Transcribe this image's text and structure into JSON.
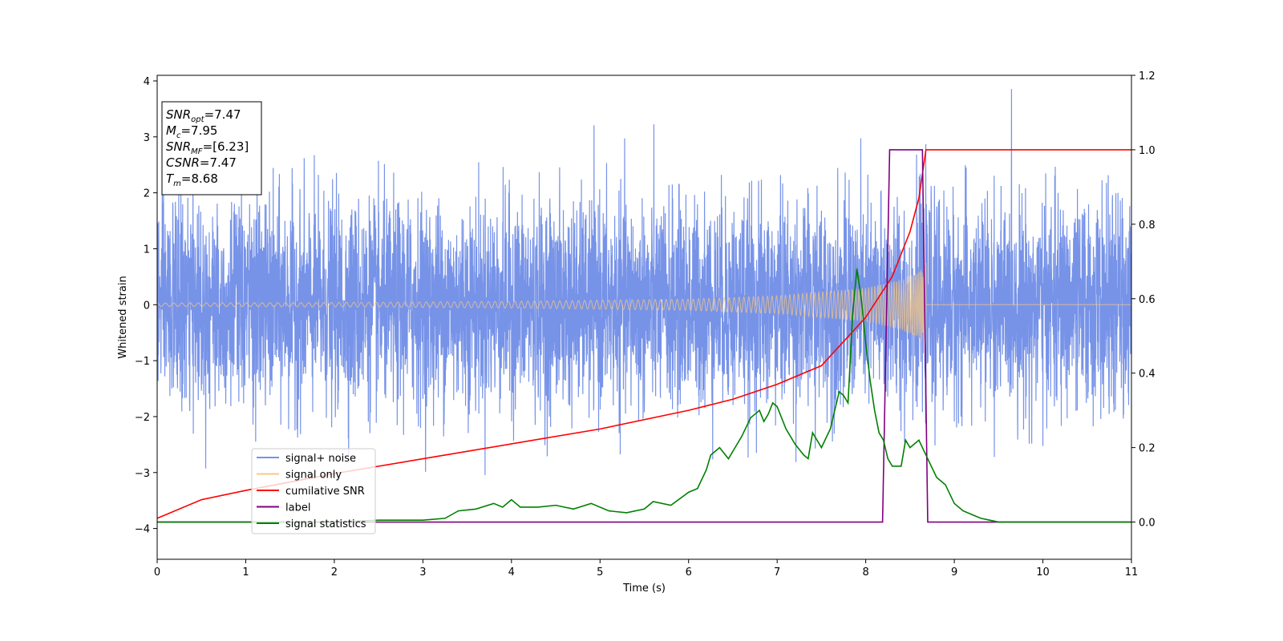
{
  "chart_data": {
    "type": "line",
    "title": "",
    "xlabel": "Time (s)",
    "ylabel": "Whitened strain",
    "xlim": [
      0,
      11
    ],
    "ylim_left": [
      -4.55,
      4.1
    ],
    "ylim_right": [
      -0.1,
      1.2
    ],
    "xticks": [
      0,
      1,
      2,
      3,
      4,
      5,
      6,
      7,
      8,
      9,
      10,
      11
    ],
    "yticks_left": [
      -4,
      -3,
      -2,
      -1,
      0,
      1,
      2,
      3,
      4
    ],
    "yticks_right": [
      0.0,
      0.2,
      0.4,
      0.6,
      0.8,
      1.0,
      1.2
    ],
    "xtick_labels": [
      "0",
      "1",
      "2",
      "3",
      "4",
      "5",
      "6",
      "7",
      "8",
      "9",
      "10",
      "11"
    ],
    "ytick_labels_left": [
      "−4",
      "−3",
      "−2",
      "−1",
      "0",
      "1",
      "2",
      "3",
      "4"
    ],
    "ytick_labels_right": [
      "0.0",
      "0.2",
      "0.4",
      "0.6",
      "0.8",
      "1.0",
      "1.2"
    ],
    "grid": false,
    "legend_position": "lower-left",
    "series": [
      {
        "name": "signal+ noise",
        "axis": "left",
        "color": "#7793e8",
        "kind": "noise",
        "noise_std": 0.9,
        "x_range": [
          0,
          11
        ]
      },
      {
        "name": "signal only",
        "axis": "left",
        "color": "#f7c784",
        "kind": "chirp",
        "merger_time": 8.68,
        "envelope_x": [
          0,
          2,
          4,
          6,
          7,
          8,
          8.4,
          8.6,
          8.68
        ],
        "envelope_y": [
          0.03,
          0.04,
          0.06,
          0.1,
          0.16,
          0.3,
          0.45,
          0.6,
          0.75
        ]
      },
      {
        "name": "cumilative SNR",
        "axis": "right",
        "color": "#ff0000",
        "x": [
          0,
          0.5,
          1,
          2,
          3,
          4,
          5,
          6,
          6.5,
          7,
          7.5,
          8,
          8.3,
          8.5,
          8.6,
          8.68,
          8.7,
          11
        ],
        "y": [
          0.01,
          0.06,
          0.085,
          0.13,
          0.17,
          0.21,
          0.25,
          0.3,
          0.33,
          0.37,
          0.42,
          0.55,
          0.66,
          0.78,
          0.87,
          1.0,
          1.0,
          1.0
        ]
      },
      {
        "name": "label",
        "axis": "right",
        "color": "#800080",
        "x": [
          0,
          8.19,
          8.27,
          8.64,
          8.7,
          11
        ],
        "y": [
          0.0,
          0.0,
          1.0,
          1.0,
          0.0,
          0.0
        ]
      },
      {
        "name": "signal statistics",
        "axis": "right",
        "color": "#008000",
        "x": [
          0,
          1,
          2,
          2.5,
          3,
          3.25,
          3.4,
          3.6,
          3.8,
          3.9,
          4.0,
          4.1,
          4.3,
          4.5,
          4.7,
          4.9,
          5.1,
          5.3,
          5.5,
          5.6,
          5.8,
          6.0,
          6.1,
          6.2,
          6.25,
          6.35,
          6.45,
          6.5,
          6.6,
          6.7,
          6.8,
          6.85,
          6.9,
          6.95,
          7.0,
          7.1,
          7.2,
          7.3,
          7.35,
          7.4,
          7.5,
          7.6,
          7.7,
          7.75,
          7.8,
          7.85,
          7.9,
          7.95,
          8.0,
          8.05,
          8.1,
          8.15,
          8.2,
          8.25,
          8.3,
          8.4,
          8.45,
          8.5,
          8.55,
          8.6,
          8.7,
          8.8,
          8.9,
          9.0,
          9.1,
          9.2,
          9.3,
          9.4,
          9.5,
          10,
          11
        ],
        "y": [
          0.0,
          0.0,
          0.0,
          0.005,
          0.005,
          0.01,
          0.03,
          0.035,
          0.05,
          0.04,
          0.06,
          0.04,
          0.04,
          0.045,
          0.035,
          0.05,
          0.03,
          0.025,
          0.035,
          0.055,
          0.045,
          0.08,
          0.09,
          0.14,
          0.18,
          0.2,
          0.17,
          0.19,
          0.23,
          0.28,
          0.3,
          0.27,
          0.29,
          0.32,
          0.31,
          0.25,
          0.21,
          0.18,
          0.17,
          0.24,
          0.2,
          0.25,
          0.35,
          0.34,
          0.32,
          0.55,
          0.68,
          0.6,
          0.48,
          0.38,
          0.3,
          0.24,
          0.22,
          0.17,
          0.15,
          0.15,
          0.22,
          0.2,
          0.21,
          0.22,
          0.17,
          0.12,
          0.1,
          0.05,
          0.03,
          0.02,
          0.01,
          0.005,
          0.0,
          0.0,
          0.0
        ]
      }
    ],
    "annotation": {
      "lines": [
        {
          "var": "SNR",
          "sub": "opt",
          "value": "=7.47"
        },
        {
          "var": "M",
          "sub": "c",
          "value": "=7.95"
        },
        {
          "var": "SNR",
          "sub": "MF",
          "value": "=[6.23]"
        },
        {
          "var": "CSNR",
          "sub": "",
          "value": "=7.47"
        },
        {
          "var": "T",
          "sub": "m",
          "value": "=8.68"
        }
      ]
    }
  }
}
